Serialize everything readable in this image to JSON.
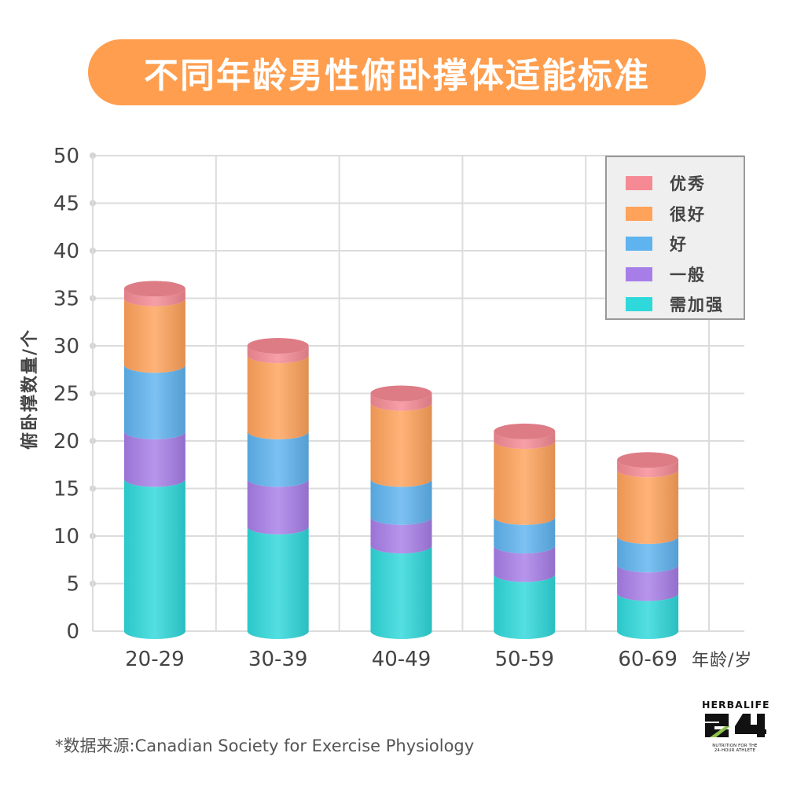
{
  "title": "不同年龄男性俯卧撑体适能标准",
  "footer": "*数据来源:Canadian Society for Exercise Physiology",
  "logo": {
    "brand": "HERBALIFE",
    "number": "24",
    "tagline_1": "NUTRITION FOR THE",
    "tagline_2": "24-HOUR ATHLETE"
  },
  "legend": [
    {
      "label": "优秀",
      "color": "#f58a94"
    },
    {
      "label": "很好",
      "color": "#ffa25a"
    },
    {
      "label": "好",
      "color": "#5fb3ef"
    },
    {
      "label": "一般",
      "color": "#a77ee8"
    },
    {
      "label": "需加强",
      "color": "#2fd8da"
    }
  ],
  "chart_data": {
    "type": "bar",
    "stacked": true,
    "style": "3d-cylinder",
    "title": "不同年龄男性俯卧撑体适能标准",
    "xlabel": "年龄/岁",
    "ylabel": "俯卧撑数量/个",
    "ylim": [
      0,
      50
    ],
    "yticks": [
      0,
      5,
      10,
      15,
      20,
      25,
      30,
      35,
      40,
      45,
      50
    ],
    "grid": true,
    "legend_position": "top-right",
    "categories": [
      "20-29",
      "30-39",
      "40-49",
      "50-59",
      "60-69"
    ],
    "series": [
      {
        "name": "需加强",
        "color": "#2fd8da",
        "values": [
          16,
          11,
          9,
          6,
          4
        ]
      },
      {
        "name": "一般",
        "color": "#a77ee8",
        "values": [
          5,
          5,
          3,
          3,
          3
        ]
      },
      {
        "name": "好",
        "color": "#5fb3ef",
        "values": [
          7,
          5,
          4,
          3,
          3
        ]
      },
      {
        "name": "很好",
        "color": "#ffa25a",
        "values": [
          7,
          8,
          8,
          8,
          7
        ]
      },
      {
        "name": "优秀",
        "color": "#f58a94",
        "values": [
          1,
          1,
          1,
          1,
          1
        ]
      }
    ],
    "cumulative_tops": {
      "需加强": [
        16,
        11,
        9,
        6,
        4
      ],
      "一般": [
        21,
        16,
        12,
        9,
        7
      ],
      "好": [
        28,
        21,
        16,
        12,
        10
      ],
      "很好": [
        35,
        29,
        24,
        20,
        17
      ],
      "优秀": [
        36,
        30,
        25,
        21,
        18
      ]
    }
  }
}
